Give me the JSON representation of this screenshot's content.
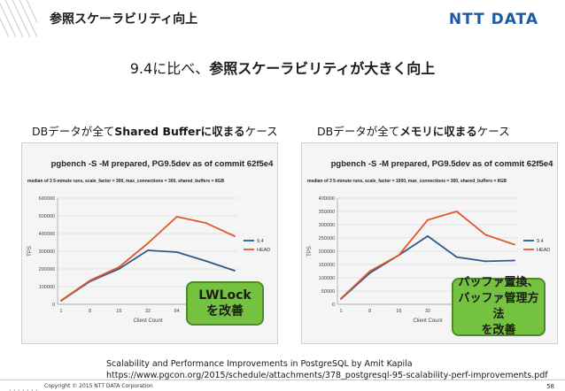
{
  "slide": {
    "title": "参照スケーラビリティ向上",
    "logo": "NTT DATA"
  },
  "headline": {
    "prefix": "9.4に比べ、",
    "emphasis": "参照スケーラビリティが大きく向上"
  },
  "sections": {
    "left": {
      "prefix": "DBデータが全て",
      "emphasis": "Shared Bufferに収まる",
      "suffix": "ケース"
    },
    "right": {
      "prefix": "DBデータが全て",
      "emphasis": "メモリに収まる",
      "suffix": "ケース"
    }
  },
  "callouts": {
    "left": [
      "LWLock",
      "を改善"
    ],
    "right": [
      "バッファ置換、",
      "バッファ管理方法",
      "を改善"
    ]
  },
  "reference": {
    "line1": "Scalability and Performance Improvements in PostgreSQL by Amit Kapila",
    "line2": "https://www.pgcon.org/2015/schedule/attachments/378_postgresql-95-scalability-perf-improvements.pdf"
  },
  "footer": {
    "copyright": "Copyright © 2015 NTT DATA Corporation",
    "page": "58"
  },
  "colors": {
    "series_94": "#2f5b8c",
    "series_head": "#e0592a",
    "callout": "#74c23f",
    "logo": "#1e5aa0"
  },
  "chart_data": [
    {
      "type": "line",
      "title": "pgbench -S -M prepared, PG9.5dev as of commit 62f5e4",
      "subtitle": "median of 3 5-minute runs, scale_factor = 300, max_connections = 300, shared_buffers = 8GB",
      "xlabel": "Client Count",
      "ylabel": "TPS",
      "categories": [
        "1",
        "8",
        "16",
        "32",
        "64",
        "128",
        "256"
      ],
      "ylim": [
        0,
        600000
      ],
      "yticks": [
        "0",
        "100000",
        "200000",
        "300000",
        "400000",
        "500000",
        "600000"
      ],
      "legend": "right",
      "grid": true,
      "series": [
        {
          "name": "9.4",
          "color": "#2f5b8c",
          "values": [
            20000,
            130000,
            200000,
            305000,
            295000,
            245000,
            190000
          ]
        },
        {
          "name": "HEAD",
          "color": "#e0592a",
          "values": [
            22000,
            135000,
            210000,
            345000,
            495000,
            460000,
            385000
          ]
        }
      ]
    },
    {
      "type": "line",
      "title": "pgbench -S -M prepared, PG9.5dev as of commit 62f5e4",
      "subtitle": "median of 3 5-minute runs, scale_factor = 1000, max_connections = 300, shared_buffers = 8GB",
      "xlabel": "Client Count",
      "ylabel": "TPS",
      "categories": [
        "1",
        "8",
        "16",
        "32",
        "64",
        "128",
        "256"
      ],
      "ylim": [
        0,
        400000
      ],
      "yticks": [
        "0",
        "50000",
        "100000",
        "150000",
        "200000",
        "250000",
        "300000",
        "350000",
        "400000"
      ],
      "legend": "right",
      "grid": true,
      "series": [
        {
          "name": "9.4",
          "color": "#2f5b8c",
          "values": [
            20000,
            118000,
            185000,
            257000,
            178000,
            162000,
            165000
          ]
        },
        {
          "name": "HEAD",
          "color": "#e0592a",
          "values": [
            22000,
            125000,
            185000,
            318000,
            350000,
            262000,
            225000
          ]
        }
      ]
    }
  ]
}
